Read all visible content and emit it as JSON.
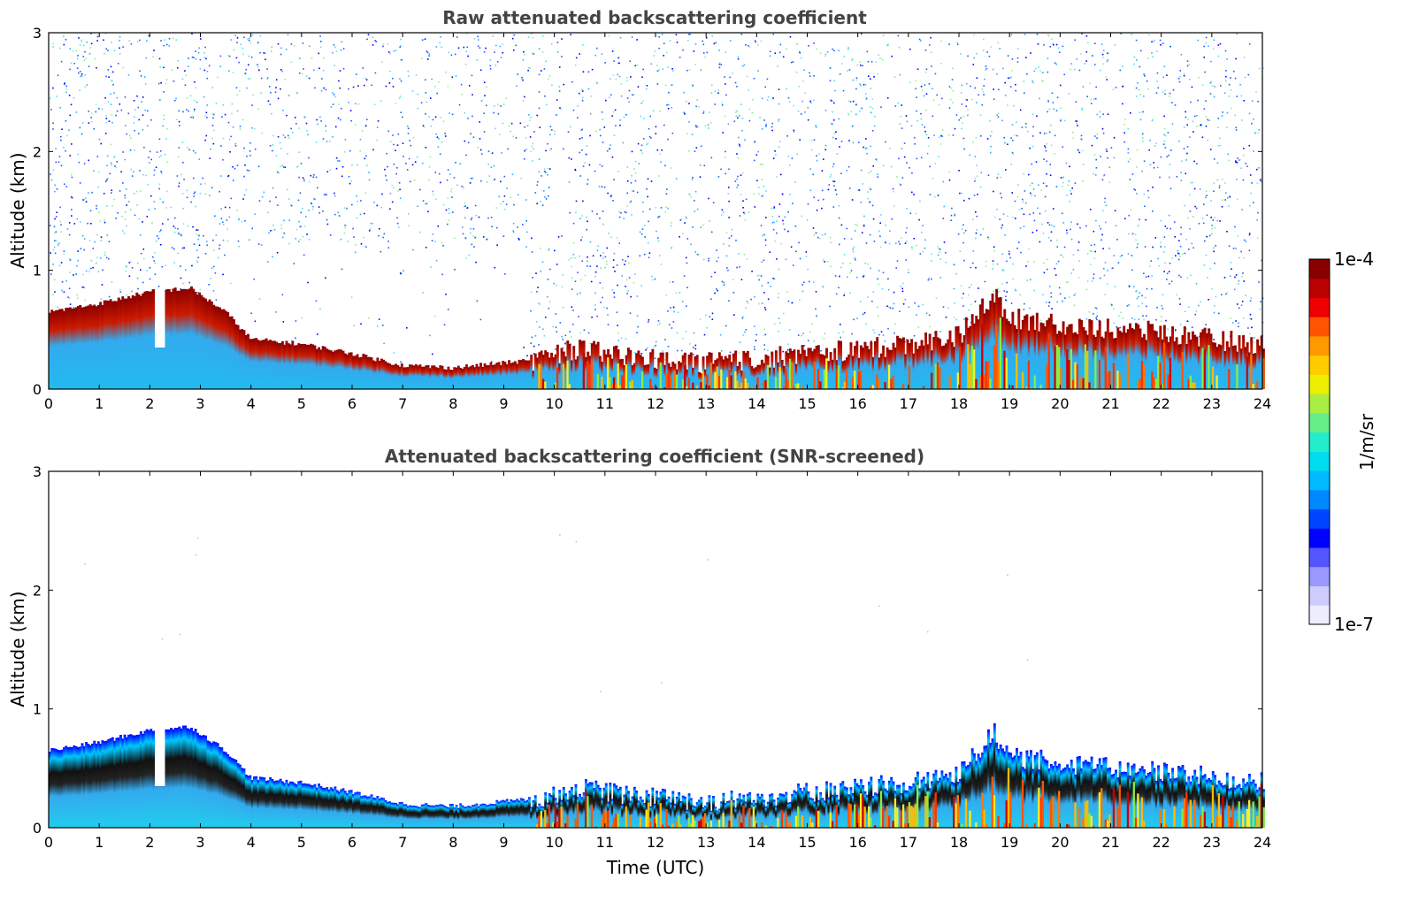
{
  "chart_data": [
    {
      "type": "heatmap",
      "title": "Raw attenuated backscattering coefficient",
      "xlabel": "",
      "ylabel": "Altitude (km)",
      "xlim": [
        0,
        24
      ],
      "ylim": [
        0,
        3
      ],
      "xticks": [
        "0",
        "1",
        "2",
        "3",
        "4",
        "5",
        "6",
        "7",
        "8",
        "9",
        "10",
        "11",
        "12",
        "13",
        "14",
        "15",
        "16",
        "17",
        "18",
        "19",
        "20",
        "21",
        "22",
        "23",
        "24"
      ],
      "yticks": [
        "0",
        "1",
        "2",
        "3"
      ],
      "screened": false,
      "boundary_layer_top_km": {
        "x": [
          0,
          1,
          2,
          2.8,
          3.5,
          4,
          5,
          6,
          7,
          8,
          9,
          9.7,
          10.5,
          11,
          12,
          13,
          14,
          15,
          16,
          17,
          18,
          18.7,
          19,
          20,
          21,
          22,
          23,
          24
        ],
        "y": [
          0.65,
          0.72,
          0.82,
          0.85,
          0.65,
          0.42,
          0.38,
          0.3,
          0.2,
          0.18,
          0.22,
          0.25,
          0.35,
          0.3,
          0.25,
          0.22,
          0.25,
          0.3,
          0.33,
          0.38,
          0.45,
          0.8,
          0.6,
          0.55,
          0.5,
          0.48,
          0.42,
          0.38
        ]
      }
    },
    {
      "type": "heatmap",
      "title": "Attenuated backscattering coefficient (SNR-screened)",
      "xlabel": "Time (UTC)",
      "ylabel": "Altitude (km)",
      "xlim": [
        0,
        24
      ],
      "ylim": [
        0,
        3
      ],
      "xticks": [
        "0",
        "1",
        "2",
        "3",
        "4",
        "5",
        "6",
        "7",
        "8",
        "9",
        "10",
        "11",
        "12",
        "13",
        "14",
        "15",
        "16",
        "17",
        "18",
        "19",
        "20",
        "21",
        "22",
        "23",
        "24"
      ],
      "yticks": [
        "0",
        "1",
        "2",
        "3"
      ],
      "screened": true,
      "boundary_layer_top_km": {
        "x": [
          0,
          1,
          2,
          2.8,
          3.5,
          4,
          5,
          6,
          7,
          8,
          9,
          9.7,
          10.5,
          11,
          12,
          13,
          14,
          15,
          16,
          17,
          18,
          18.7,
          19,
          20,
          21,
          22,
          23,
          24
        ],
        "y": [
          0.65,
          0.72,
          0.82,
          0.85,
          0.65,
          0.42,
          0.38,
          0.3,
          0.2,
          0.18,
          0.22,
          0.25,
          0.35,
          0.3,
          0.25,
          0.22,
          0.25,
          0.3,
          0.33,
          0.38,
          0.45,
          0.8,
          0.6,
          0.55,
          0.5,
          0.48,
          0.42,
          0.38
        ]
      }
    }
  ],
  "colorbar": {
    "label": "1/m/sr",
    "max_label": "1e-4",
    "min_label": "1e-7",
    "colors": [
      "#eeeeff",
      "#ccccff",
      "#9999ff",
      "#5555ff",
      "#0000ff",
      "#0044ff",
      "#0088ff",
      "#00bbff",
      "#00ddee",
      "#22eecc",
      "#66ee88",
      "#aaee44",
      "#eeee00",
      "#ffcc00",
      "#ff9900",
      "#ff5500",
      "#ee0000",
      "#bb0000",
      "#880000"
    ]
  }
}
